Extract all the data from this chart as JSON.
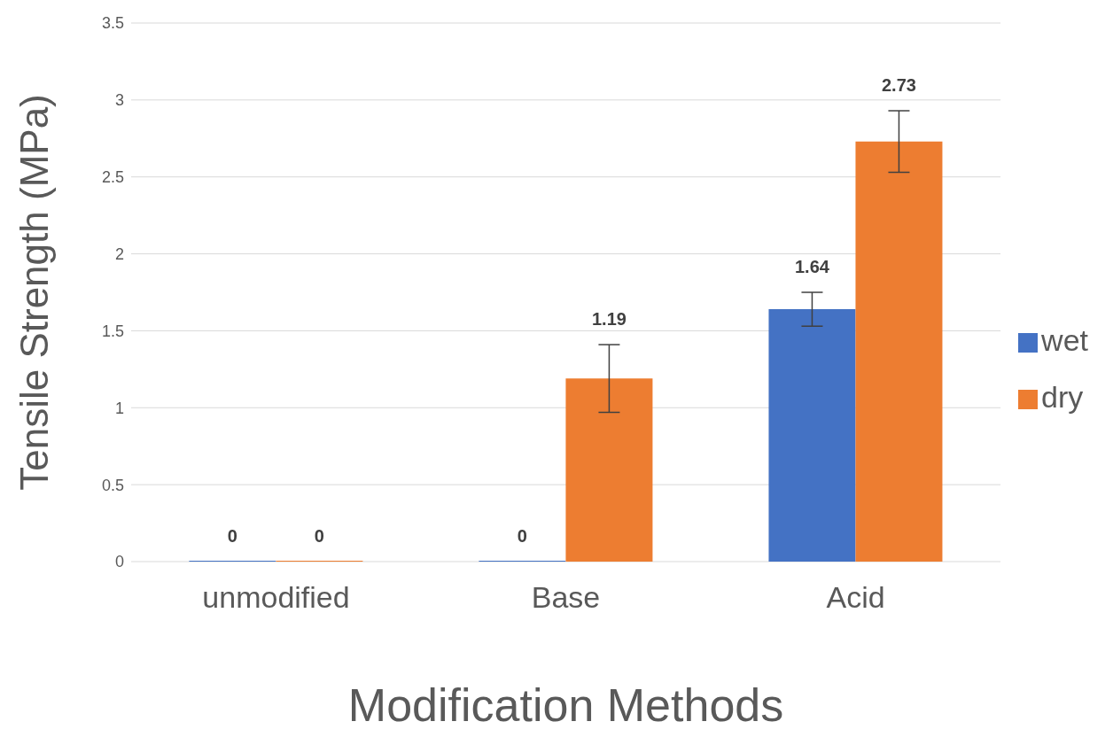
{
  "chart_data": {
    "type": "bar",
    "xlabel": "Modification Methods",
    "ylabel": "Tensile Strength (MPa)",
    "categories": [
      "unmodified",
      "Base",
      "Acid"
    ],
    "series": [
      {
        "name": "wet",
        "color": "#4472c4",
        "values": [
          0,
          0,
          1.64
        ],
        "errors": [
          null,
          null,
          0.11
        ]
      },
      {
        "name": "dry",
        "color": "#ed7d31",
        "values": [
          0,
          1.19,
          2.73
        ],
        "errors": [
          null,
          0.22,
          0.2
        ]
      }
    ],
    "ylim": [
      0,
      3.5
    ],
    "yticks": [
      0,
      0.5,
      1,
      1.5,
      2,
      2.5,
      3,
      3.5
    ],
    "grid": "y",
    "legend": "right",
    "data_labels": true
  }
}
